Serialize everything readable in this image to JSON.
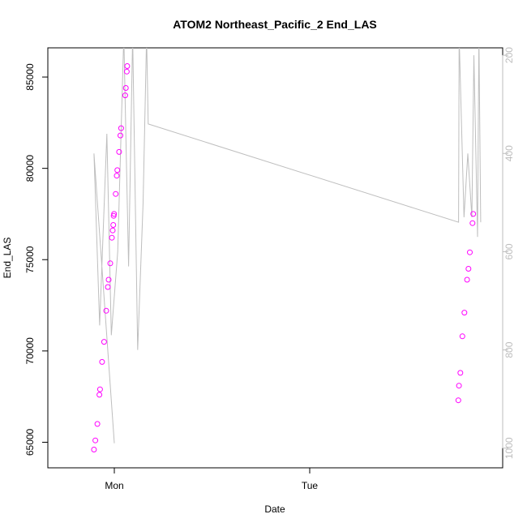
{
  "chart_data": {
    "type": "scatter",
    "title": "ATOM2 Northeast_Pacific_2 End_LAS",
    "xlabel": "Date",
    "ylabel": "End_LAS",
    "x_ticks": [
      "Mon",
      "Tue"
    ],
    "y_ticks": [
      65000,
      70000,
      75000,
      80000,
      85000
    ],
    "y_ticks_right": [
      200,
      400,
      600,
      800,
      1000
    ],
    "ylim": [
      63600,
      86600
    ],
    "ylim_right": [
      1040,
      185
    ],
    "right_axis_inverted": true,
    "grid": false,
    "legend": "none",
    "colors": {
      "points": "#ff00ff",
      "line": "#bebebe",
      "axis": "#000000",
      "right_axis": "#bdbdbd"
    },
    "series": [
      {
        "type": "line",
        "axis": "right",
        "points": [
          {
            "x": "Mon 00:00",
            "y": 990
          },
          {
            "x": "Sun 21:30",
            "y": 400
          },
          {
            "x": "Sun 22:12",
            "y": 750
          },
          {
            "x": "Sun 23:05",
            "y": 360
          },
          {
            "x": "Sun 23:38",
            "y": 770
          },
          {
            "x": "Mon 00:25",
            "y": 600
          },
          {
            "x": "Mon 01:10",
            "y": 160
          },
          {
            "x": "Mon 01:45",
            "y": 630
          },
          {
            "x": "Mon 02:15",
            "y": 160
          },
          {
            "x": "Mon 02:52",
            "y": 800
          },
          {
            "x": "Mon 03:32",
            "y": 500
          },
          {
            "x": "Mon 03:58",
            "y": 160
          },
          {
            "x": "Mon 04:10",
            "y": 340
          },
          {
            "x": "Tue 18:17",
            "y": 540
          },
          {
            "x": "Tue 18:21",
            "y": 160
          },
          {
            "x": "Tue 18:57",
            "y": 530
          },
          {
            "x": "Tue 19:25",
            "y": 400
          },
          {
            "x": "Tue 19:55",
            "y": 530
          },
          {
            "x": "Tue 20:10",
            "y": 200
          },
          {
            "x": "Tue 20:37",
            "y": 570
          },
          {
            "x": "Tue 20:47",
            "y": 160
          },
          {
            "x": "Tue 21:00",
            "y": 540
          }
        ]
      },
      {
        "type": "scatter",
        "axis": "left",
        "points": [
          {
            "x": "Sun 21:30",
            "y": 64600
          },
          {
            "x": "Sun 21:40",
            "y": 65100
          },
          {
            "x": "Sun 21:55",
            "y": 66000
          },
          {
            "x": "Sun 22:10",
            "y": 67600
          },
          {
            "x": "Sun 22:15",
            "y": 67900
          },
          {
            "x": "Sun 22:30",
            "y": 69400
          },
          {
            "x": "Sun 22:45",
            "y": 70500
          },
          {
            "x": "Sun 23:00",
            "y": 72200
          },
          {
            "x": "Sun 23:12",
            "y": 73500
          },
          {
            "x": "Sun 23:18",
            "y": 73900
          },
          {
            "x": "Sun 23:30",
            "y": 74800
          },
          {
            "x": "Sun 23:42",
            "y": 76200
          },
          {
            "x": "Sun 23:48",
            "y": 76600
          },
          {
            "x": "Sun 23:52",
            "y": 76900
          },
          {
            "x": "Sun 23:55",
            "y": 77400
          },
          {
            "x": "Sun 23:58",
            "y": 77500
          },
          {
            "x": "Mon 00:10",
            "y": 78600
          },
          {
            "x": "Mon 00:18",
            "y": 79600
          },
          {
            "x": "Mon 00:22",
            "y": 79900
          },
          {
            "x": "Mon 00:35",
            "y": 80900
          },
          {
            "x": "Mon 00:45",
            "y": 81800
          },
          {
            "x": "Mon 00:50",
            "y": 82200
          },
          {
            "x": "Mon 01:20",
            "y": 84000
          },
          {
            "x": "Mon 01:25",
            "y": 84400
          },
          {
            "x": "Mon 01:32",
            "y": 85300
          },
          {
            "x": "Mon 01:35",
            "y": 85600
          },
          {
            "x": "Tue 18:15",
            "y": 67300
          },
          {
            "x": "Tue 18:20",
            "y": 68100
          },
          {
            "x": "Tue 18:30",
            "y": 68800
          },
          {
            "x": "Tue 18:45",
            "y": 70800
          },
          {
            "x": "Tue 19:00",
            "y": 72100
          },
          {
            "x": "Tue 19:20",
            "y": 73900
          },
          {
            "x": "Tue 19:30",
            "y": 74500
          },
          {
            "x": "Tue 19:40",
            "y": 75400
          },
          {
            "x": "Tue 20:00",
            "y": 77000
          },
          {
            "x": "Tue 20:05",
            "y": 77500
          }
        ]
      }
    ]
  }
}
